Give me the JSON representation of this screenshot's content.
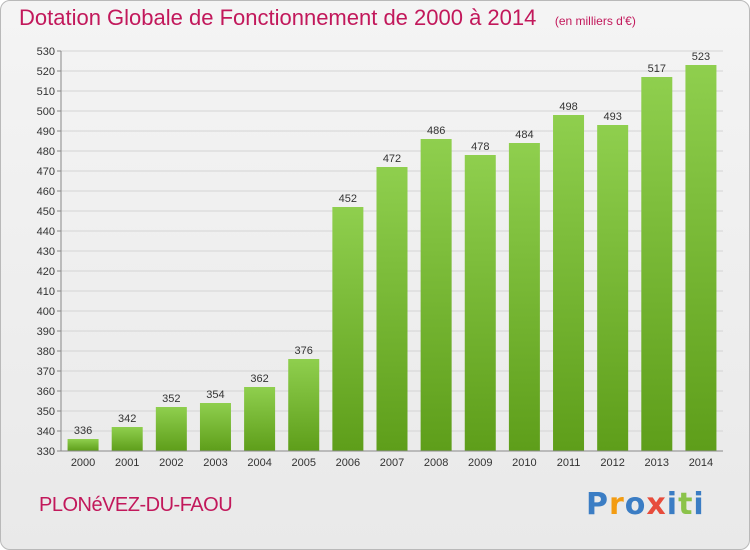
{
  "title": "Dotation Globale de Fonctionnement de 2000 à 2014",
  "subtitle": "(en milliers d'€)",
  "commune": "PLONéVEZ-DU-FAOU",
  "logo": {
    "letters": [
      "P",
      "r",
      "o",
      "x",
      "i",
      "t",
      "i"
    ],
    "colors": [
      "#3b7dc4",
      "#f39c12",
      "#3b7dc4",
      "#e74c3c",
      "#3b7dc4",
      "#8bc34a",
      "#3b7dc4"
    ]
  },
  "colors": {
    "bar_top": "#8fcf4e",
    "bar_bottom": "#5e9e1a",
    "title": "#c2185b"
  },
  "chart_data": {
    "type": "bar",
    "categories": [
      "2000",
      "2001",
      "2002",
      "2003",
      "2004",
      "2005",
      "2006",
      "2007",
      "2008",
      "2009",
      "2010",
      "2011",
      "2012",
      "2013",
      "2014"
    ],
    "values": [
      336,
      342,
      352,
      354,
      362,
      376,
      452,
      472,
      486,
      478,
      484,
      498,
      493,
      517,
      523
    ],
    "ylim": [
      330,
      530
    ],
    "yticks": [
      330,
      340,
      350,
      360,
      370,
      380,
      390,
      400,
      410,
      420,
      430,
      440,
      450,
      460,
      470,
      480,
      490,
      500,
      510,
      520,
      530
    ],
    "grid": true
  }
}
